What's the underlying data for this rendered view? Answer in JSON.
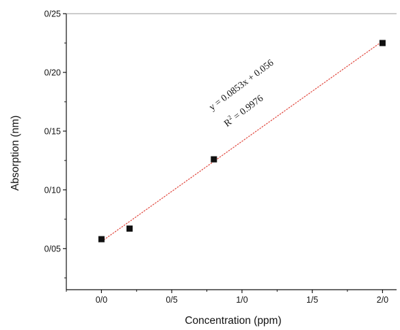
{
  "chart_data": {
    "type": "scatter",
    "xlabel": "Concentration (ppm)",
    "ylabel": "Absorption (nm)",
    "xlim": [
      -0.25,
      2.1
    ],
    "ylim": [
      0.015,
      0.25
    ],
    "x_ticks": [
      0.0,
      0.5,
      1.0,
      1.5,
      2.0
    ],
    "x_tick_labels": [
      "0/0",
      "0/5",
      "1/0",
      "1/5",
      "2/0"
    ],
    "y_ticks": [
      0.05,
      0.1,
      0.15,
      0.2,
      0.25
    ],
    "y_tick_labels": [
      "0/05",
      "0/10",
      "0/15",
      "0/20",
      "0/25"
    ],
    "series": [
      {
        "marker": "square",
        "color": "#111111",
        "x": [
          0.0,
          0.2,
          0.8,
          2.0
        ],
        "y": [
          0.058,
          0.067,
          0.126,
          0.225
        ]
      }
    ],
    "fit": {
      "slope": 0.0853,
      "intercept": 0.056,
      "x_range": [
        0.0,
        2.0
      ],
      "color": "#e0443a",
      "style": "dashed",
      "equation": "y = 0.0853x + 0.056",
      "r2_prefix": "R",
      "r2_exp": "2",
      "r2_value": " = 0.9976"
    },
    "grid": false,
    "legend": "none"
  }
}
